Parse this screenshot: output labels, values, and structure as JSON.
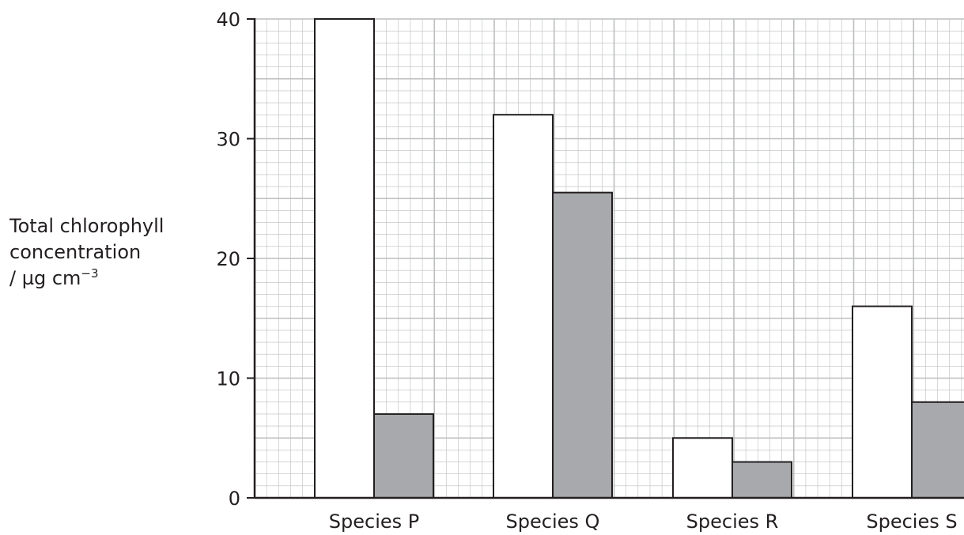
{
  "chart_data": {
    "type": "bar",
    "categories": [
      "Species P",
      "Species Q",
      "Species R",
      "Species S"
    ],
    "series": [
      {
        "values": [
          40,
          32,
          5,
          16
        ],
        "color": "#ffffff"
      },
      {
        "values": [
          7,
          25.5,
          3,
          8
        ],
        "color": "#a7a9ac"
      }
    ],
    "ylabel": {
      "line1": "Total chlorophyll",
      "line2": "concentration",
      "line3_prefix": "/ µg cm",
      "line3_sup": "−3"
    },
    "xlabel": "",
    "ylim": [
      0,
      40
    ],
    "yticks": [
      "0",
      "10",
      "20",
      "30",
      "40"
    ],
    "grid": true,
    "grid_color": "#bcbec0",
    "axis_color": "#231f20"
  }
}
